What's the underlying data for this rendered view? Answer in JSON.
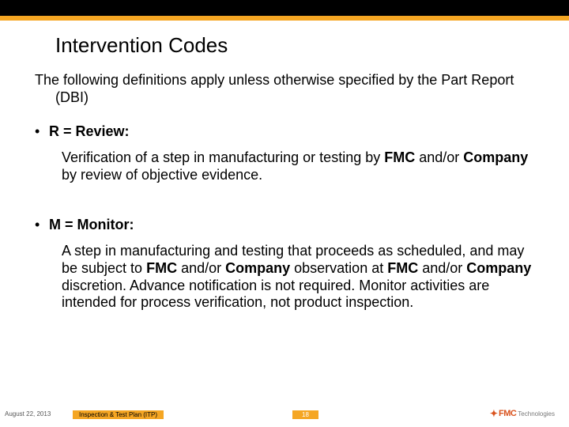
{
  "colors": {
    "top_bar": "#000000",
    "accent_bar": "#f5a623",
    "footer_mid_bg": "#f5a623",
    "footer_page_bg": "#f5a623",
    "logo_primary": "#d9531e",
    "logo_secondary": "#777777"
  },
  "title": "Intervention Codes",
  "intro": "The following definitions apply unless otherwise specified by the Part Report (DBI)",
  "codes": [
    {
      "heading": "R = Review:",
      "body_parts": [
        {
          "t": "Verification of a step in manufacturing or testing by ",
          "b": false
        },
        {
          "t": "FMC",
          "b": true
        },
        {
          "t": " and/or ",
          "b": false
        },
        {
          "t": "Company",
          "b": true
        },
        {
          "t": " by review of objective evidence.",
          "b": false
        }
      ]
    },
    {
      "heading": "M = Monitor:",
      "body_parts": [
        {
          "t": "A step in manufacturing and testing that proceeds as scheduled, and may be subject to ",
          "b": false
        },
        {
          "t": "FMC",
          "b": true
        },
        {
          "t": " and/or ",
          "b": false
        },
        {
          "t": "Company",
          "b": true
        },
        {
          "t": " observation at ",
          "b": false
        },
        {
          "t": "FMC",
          "b": true
        },
        {
          "t": " and/or ",
          "b": false
        },
        {
          "t": "Company",
          "b": true
        },
        {
          "t": " discretion. Advance notification is not required. Monitor activities are intended for process verification, not product inspection.",
          "b": false
        }
      ]
    }
  ],
  "footer": {
    "date": "August 22, 2013",
    "mid": "Inspection & Test Plan (ITP)",
    "page": "18",
    "logo_star": "✦",
    "logo_fmc": "FMC",
    "logo_tech": "Technologies"
  }
}
